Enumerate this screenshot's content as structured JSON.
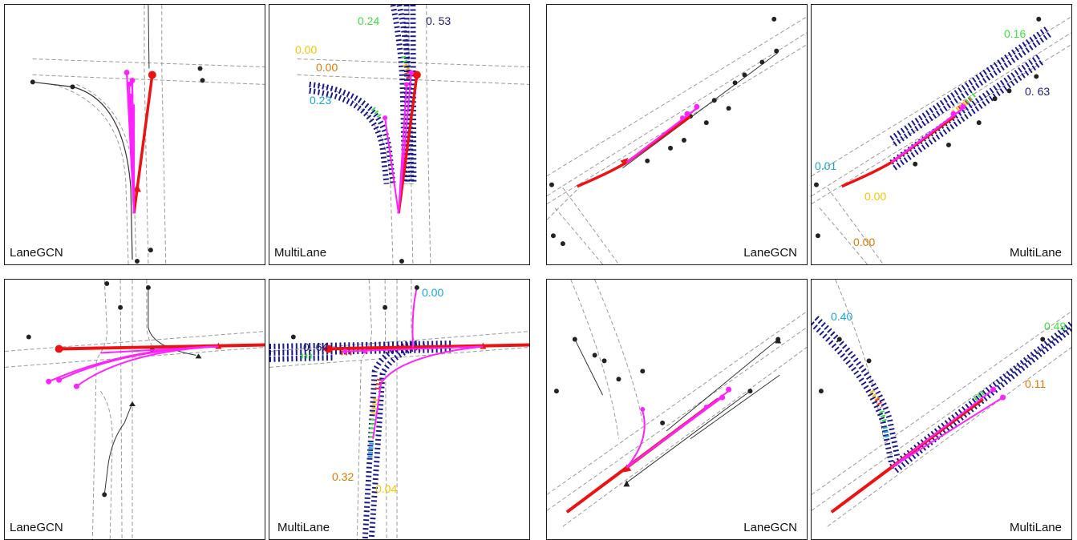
{
  "panels": [
    {
      "id": "p1",
      "caption": "LaneGCN",
      "probabilities": []
    },
    {
      "id": "p2",
      "caption": "MultiLane",
      "probabilities": [
        {
          "text": "0.24",
          "color": "#3ee03e"
        },
        {
          "text": "0. 53",
          "color": "#1b1b7a"
        },
        {
          "text": "0.00",
          "color": "#f5c400"
        },
        {
          "text": "0.00",
          "color": "#e07800"
        },
        {
          "text": "0.23",
          "color": "#19a3df"
        }
      ]
    },
    {
      "id": "p3",
      "caption": "LaneGCN",
      "probabilities": []
    },
    {
      "id": "p4",
      "caption": "MultiLane",
      "probabilities": [
        {
          "text": "0.16",
          "color": "#3ee03e"
        },
        {
          "text": "0. 63",
          "color": "#1b1b7a"
        },
        {
          "text": "0.01",
          "color": "#19a3df"
        },
        {
          "text": "0.00",
          "color": "#f5c400"
        },
        {
          "text": "0.00",
          "color": "#e07800"
        }
      ]
    },
    {
      "id": "p5",
      "caption": "LaneGCN",
      "probabilities": []
    },
    {
      "id": "p6",
      "caption": "MultiLane",
      "probabilities": [
        {
          "text": "0.00",
          "color": "#19a3df"
        },
        {
          "text": "0. 64",
          "color": "#1b1b7a"
        },
        {
          "text": "0.32",
          "color": "#e07800"
        },
        {
          "text": "0.04",
          "color": "#f5c400"
        }
      ]
    },
    {
      "id": "p7",
      "caption": "LaneGCN",
      "probabilities": []
    },
    {
      "id": "p8",
      "caption": "MultiLane",
      "probabilities": [
        {
          "text": "0.40",
          "color": "#19a3df"
        },
        {
          "text": "0.49",
          "color": "#3ee03e"
        },
        {
          "text": "0.11",
          "color": "#e07800"
        }
      ]
    }
  ],
  "colors": {
    "ground_truth": "#ee1111",
    "prediction": "#ff22ff",
    "lane": "#888888",
    "agent": "#222222",
    "lane_dots": "#1a1a8c"
  }
}
